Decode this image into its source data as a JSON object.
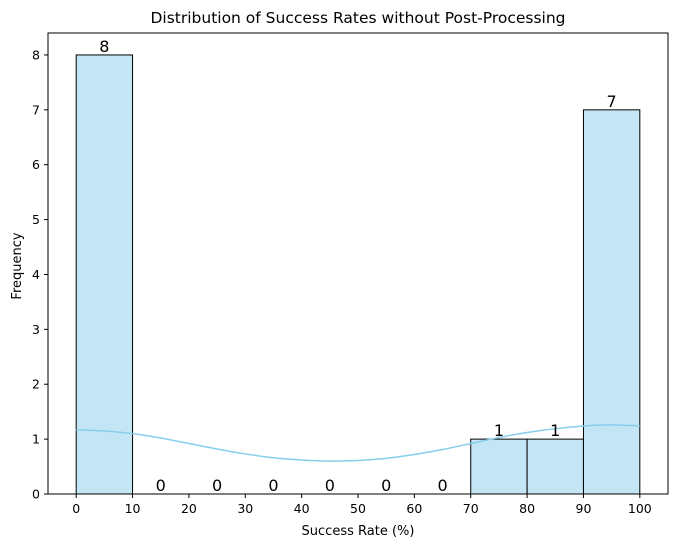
{
  "chart_data": {
    "type": "bar",
    "title": "Distribution of Success Rates without Post-Processing",
    "xlabel": "Success Rate (%)",
    "ylabel": "Frequency",
    "bins": [
      {
        "start": 0,
        "end": 10,
        "count": 8
      },
      {
        "start": 10,
        "end": 20,
        "count": 0
      },
      {
        "start": 20,
        "end": 30,
        "count": 0
      },
      {
        "start": 30,
        "end": 40,
        "count": 0
      },
      {
        "start": 40,
        "end": 50,
        "count": 0
      },
      {
        "start": 50,
        "end": 60,
        "count": 0
      },
      {
        "start": 60,
        "end": 70,
        "count": 0
      },
      {
        "start": 70,
        "end": 80,
        "count": 1
      },
      {
        "start": 80,
        "end": 90,
        "count": 1
      },
      {
        "start": 90,
        "end": 100,
        "count": 7
      }
    ],
    "data_labels": [
      "8",
      "0",
      "0",
      "0",
      "0",
      "0",
      "0",
      "1",
      "1",
      "7"
    ],
    "xticks": [
      0,
      10,
      20,
      30,
      40,
      50,
      60,
      70,
      80,
      90,
      100
    ],
    "yticks": [
      0,
      1,
      2,
      3,
      4,
      5,
      6,
      7,
      8
    ],
    "xlim": [
      -5,
      105
    ],
    "ylim": [
      0,
      8.4
    ],
    "kde": [
      {
        "x": 0,
        "y": 1.17
      },
      {
        "x": 5,
        "y": 1.15
      },
      {
        "x": 10,
        "y": 1.1
      },
      {
        "x": 15,
        "y": 1.02
      },
      {
        "x": 20,
        "y": 0.92
      },
      {
        "x": 25,
        "y": 0.82
      },
      {
        "x": 30,
        "y": 0.73
      },
      {
        "x": 35,
        "y": 0.66
      },
      {
        "x": 40,
        "y": 0.62
      },
      {
        "x": 45,
        "y": 0.6
      },
      {
        "x": 50,
        "y": 0.61
      },
      {
        "x": 55,
        "y": 0.65
      },
      {
        "x": 60,
        "y": 0.72
      },
      {
        "x": 65,
        "y": 0.81
      },
      {
        "x": 70,
        "y": 0.92
      },
      {
        "x": 75,
        "y": 1.03
      },
      {
        "x": 80,
        "y": 1.12
      },
      {
        "x": 85,
        "y": 1.19
      },
      {
        "x": 90,
        "y": 1.24
      },
      {
        "x": 95,
        "y": 1.26
      },
      {
        "x": 100,
        "y": 1.24
      }
    ],
    "colors": {
      "bar_fill": "#c4e6f4",
      "bar_edge": "#000000",
      "kde_line": "#87ceeb"
    },
    "grid": false,
    "legend": "none"
  }
}
